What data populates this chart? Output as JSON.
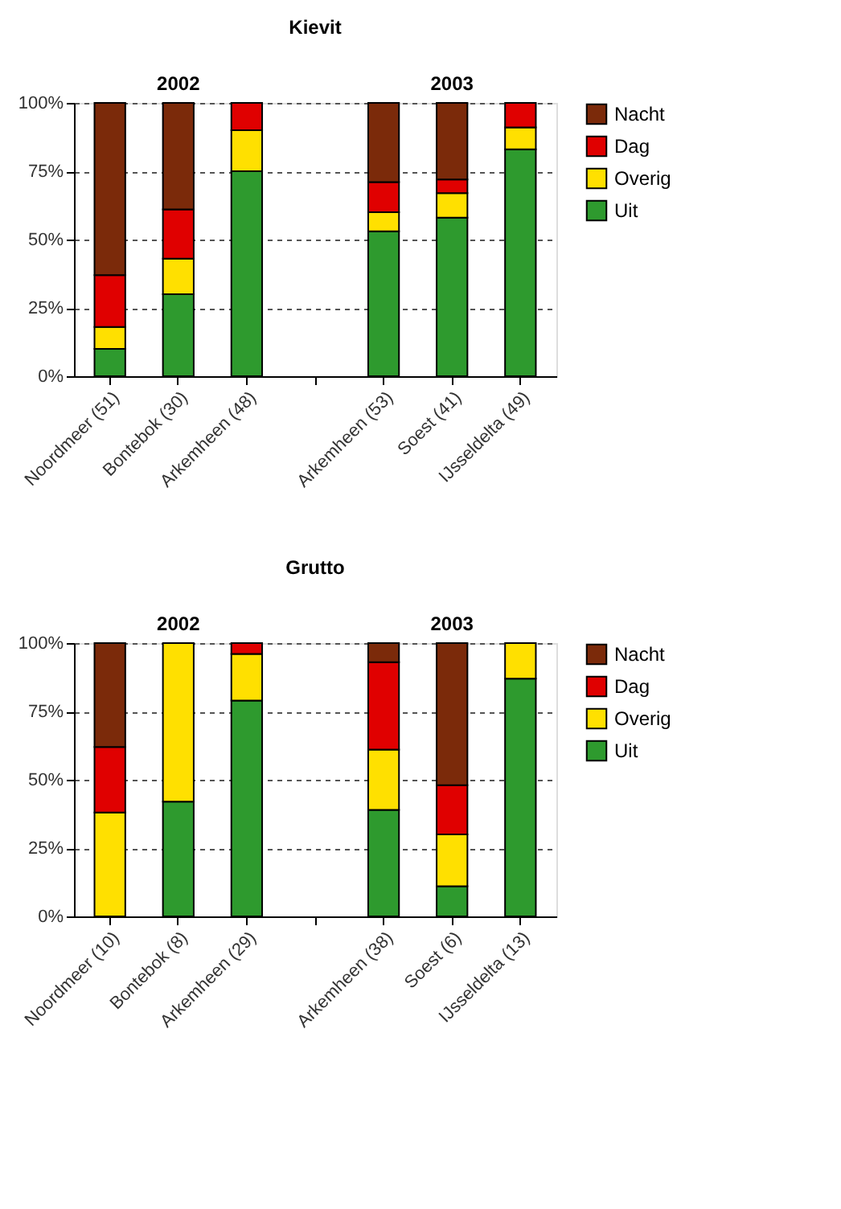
{
  "chart_data": [
    {
      "type": "bar",
      "title": "Kievit",
      "stacked": true,
      "categories": [
        "Noordmeer (51)",
        "Bontebok (30)",
        "Arkemheen (48)",
        null,
        "Arkemheen (53)",
        "Soest (41)",
        "IJsseldelta (49)"
      ],
      "series": [
        {
          "name": "Uit",
          "color": "#2e9a2e",
          "values": [
            10,
            30,
            75,
            null,
            53,
            58,
            83
          ]
        },
        {
          "name": "Overig",
          "color": "#ffe000",
          "values": [
            8,
            13,
            15,
            null,
            7,
            9,
            8
          ]
        },
        {
          "name": "Dag",
          "color": "#e00000",
          "values": [
            19,
            18,
            10,
            null,
            11,
            5,
            9
          ]
        },
        {
          "name": "Nacht",
          "color": "#7b2a0a",
          "values": [
            63,
            39,
            0,
            null,
            29,
            28,
            0
          ]
        }
      ],
      "ylim": [
        0,
        100
      ],
      "yticks": [
        {
          "value": 0,
          "label": "0%"
        },
        {
          "value": 25,
          "label": "25%"
        },
        {
          "value": 50,
          "label": "50%"
        },
        {
          "value": 75,
          "label": "75%"
        },
        {
          "value": 100,
          "label": "100%"
        }
      ],
      "grid": "y",
      "legend": "top right",
      "annotations": [
        "2002",
        "2003"
      ]
    },
    {
      "type": "bar",
      "title": "Grutto",
      "stacked": true,
      "categories": [
        "Noordmeer (10)",
        "Bontebok (8)",
        "Arkemheen (29)",
        null,
        "Arkemheen (38)",
        "Soest (6)",
        "IJsseldelta (13)"
      ],
      "series": [
        {
          "name": "Uit",
          "color": "#2e9a2e",
          "values": [
            0,
            42,
            79,
            null,
            39,
            11,
            87
          ]
        },
        {
          "name": "Overig",
          "color": "#ffe000",
          "values": [
            38,
            58,
            17,
            null,
            22,
            19,
            13
          ]
        },
        {
          "name": "Dag",
          "color": "#e00000",
          "values": [
            24,
            0,
            4,
            null,
            32,
            18,
            0
          ]
        },
        {
          "name": "Nacht",
          "color": "#7b2a0a",
          "values": [
            38,
            0,
            0,
            null,
            7,
            52,
            0
          ]
        }
      ],
      "ylim": [
        0,
        100
      ],
      "yticks": [
        {
          "value": 0,
          "label": "0%"
        },
        {
          "value": 25,
          "label": "25%"
        },
        {
          "value": 50,
          "label": "50%"
        },
        {
          "value": 75,
          "label": "75%"
        },
        {
          "value": 100,
          "label": "100%"
        }
      ],
      "grid": "y",
      "legend": "top right",
      "annotations": [
        "2002",
        "2003"
      ]
    }
  ]
}
